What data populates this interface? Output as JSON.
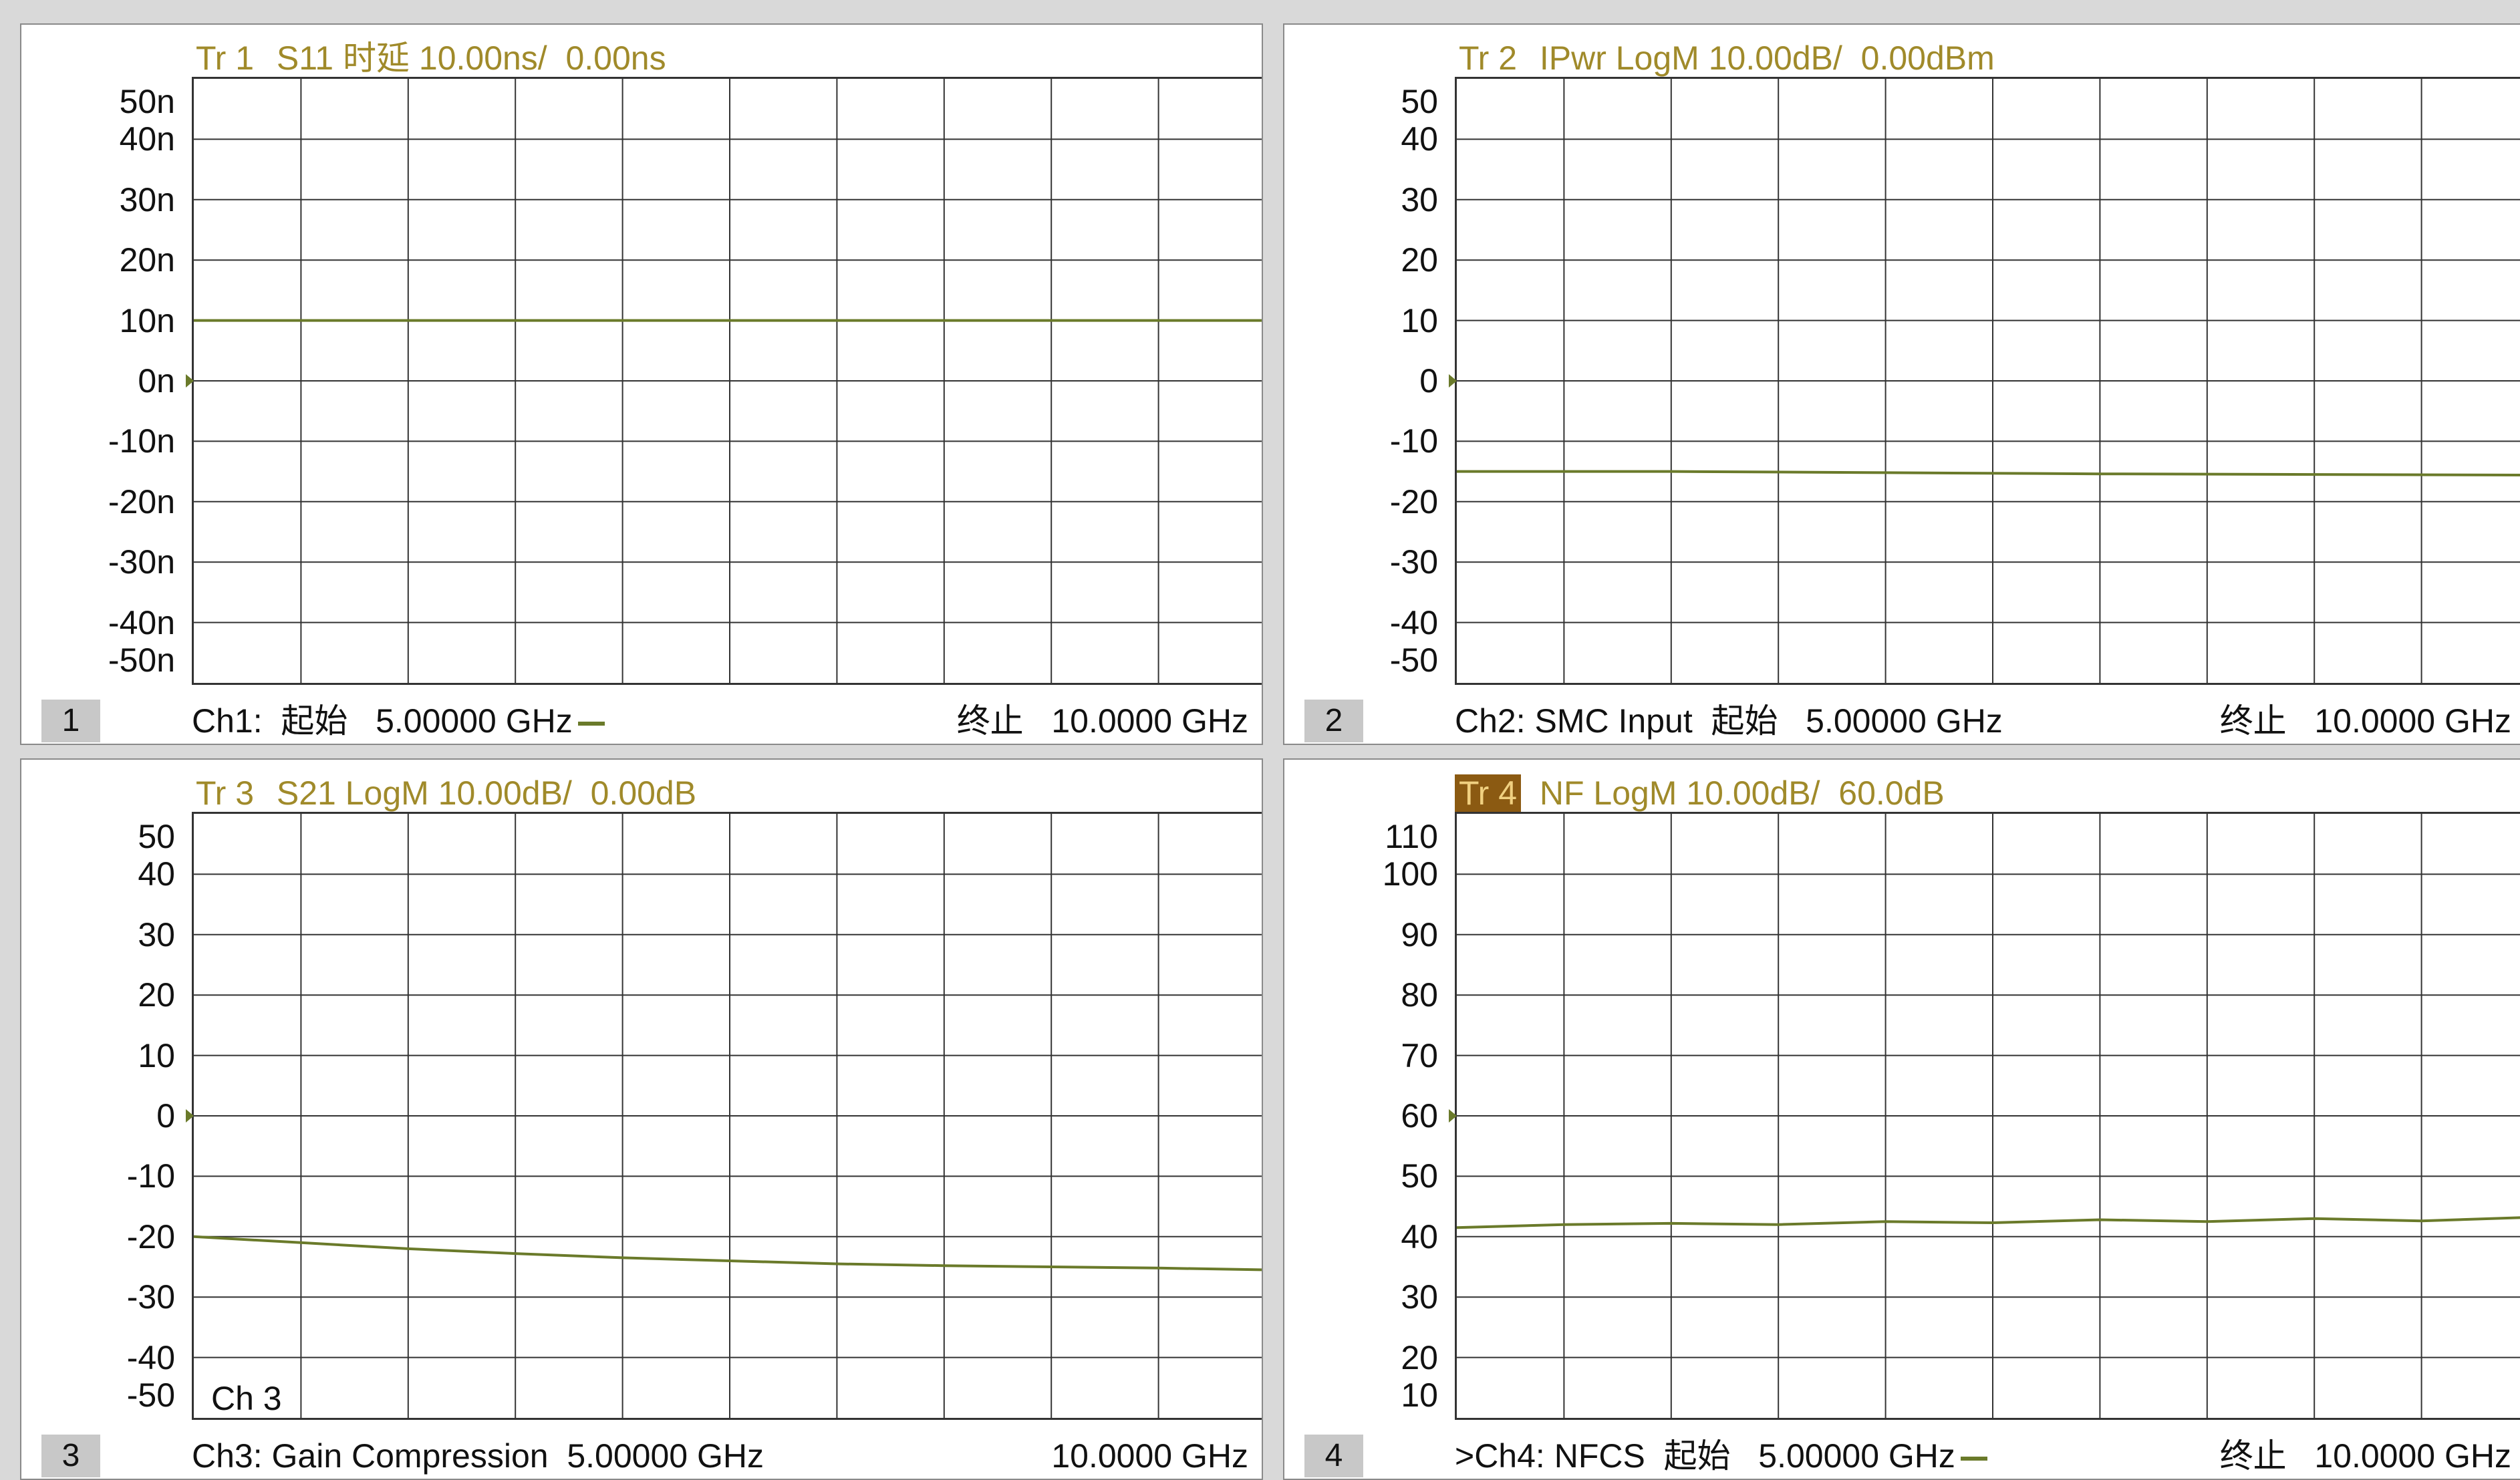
{
  "colors": {
    "trace": "#6a7a2a",
    "title": "#a08a2a",
    "grid": "#333333",
    "active_tab_bg": "#8b5a12"
  },
  "panels": [
    {
      "id": "1",
      "trace_label": "Tr 1",
      "title": "S11 时延 10.00ns/  0.00ns",
      "y_ticks": [
        "50n",
        "40n",
        "30n",
        "20n",
        "10n",
        "0n",
        "-10n",
        "-20n",
        "-30n",
        "-40n",
        "-50n"
      ],
      "channel_number": "1",
      "footer_left": "Ch1:  起始   5.00000 GHz",
      "footer_right": "终止   10.0000 GHz",
      "active": false,
      "show_dash": true,
      "chart_data": {
        "type": "line",
        "ylim": [
          -50,
          50
        ],
        "y_unit": "ns",
        "reference_level": 0,
        "x": [
          5.0,
          10.0
        ],
        "series": [
          {
            "values": [
              10,
              10
            ]
          }
        ]
      }
    },
    {
      "id": "2",
      "trace_label": "Tr 2",
      "title": "IPwr LogM 10.00dB/  0.00dBm",
      "y_ticks": [
        "50",
        "40",
        "30",
        "20",
        "10",
        "0",
        "-10",
        "-20",
        "-30",
        "-40",
        "-50"
      ],
      "channel_number": "2",
      "footer_left": "Ch2: SMC Input  起始   5.00000 GHz",
      "footer_right": "终止   10.0000 GHz",
      "active": false,
      "show_dash": false,
      "chart_data": {
        "type": "line",
        "ylim": [
          -50,
          50
        ],
        "reference_level": 0,
        "x": [
          5.0,
          6.0,
          7.0,
          8.0,
          9.0,
          10.0
        ],
        "series": [
          {
            "values": [
              -15,
              -15,
              -15.2,
              -15.4,
              -15.5,
              -15.6
            ]
          }
        ]
      }
    },
    {
      "id": "3",
      "trace_label": "Tr 3",
      "title": "S21 LogM 10.00dB/  0.00dB",
      "y_ticks": [
        "50",
        "40",
        "30",
        "20",
        "10",
        "0",
        "-10",
        "-20",
        "-30",
        "-40",
        "-50"
      ],
      "channel_number": "3",
      "footer_left": "Ch3: Gain Compression  5.00000 GHz",
      "footer_right": "10.0000 GHz",
      "inner_label": "Ch 3",
      "active": false,
      "show_dash": false,
      "chart_data": {
        "type": "line",
        "ylim": [
          -50,
          50
        ],
        "reference_level": 0,
        "x": [
          5.0,
          5.5,
          6.0,
          6.5,
          7.0,
          7.5,
          8.0,
          8.5,
          9.0,
          9.5,
          10.0
        ],
        "series": [
          {
            "values": [
              -20,
              -21,
              -22,
              -22.8,
              -23.5,
              -24.0,
              -24.5,
              -24.8,
              -25.0,
              -25.2,
              -25.5
            ]
          }
        ]
      }
    },
    {
      "id": "4",
      "trace_label": "Tr 4",
      "title": "NF LogM 10.00dB/  60.0dB",
      "y_ticks": [
        "110",
        "100",
        "90",
        "80",
        "70",
        "60",
        "50",
        "40",
        "30",
        "20",
        "10"
      ],
      "channel_number": "4",
      "footer_left": ">Ch4: NFCS  起始   5.00000 GHz",
      "footer_right": "终止   10.0000 GHz",
      "active": true,
      "show_dash": true,
      "chart_data": {
        "type": "line",
        "ylim": [
          10,
          110
        ],
        "reference_level": 60,
        "x": [
          5.0,
          5.5,
          6.0,
          6.5,
          7.0,
          7.5,
          8.0,
          8.5,
          9.0,
          9.5,
          10.0
        ],
        "series": [
          {
            "values": [
              41.5,
              42.0,
              42.2,
              42.0,
              42.5,
              42.3,
              42.8,
              42.5,
              43.0,
              42.6,
              43.2
            ]
          }
        ]
      }
    }
  ]
}
